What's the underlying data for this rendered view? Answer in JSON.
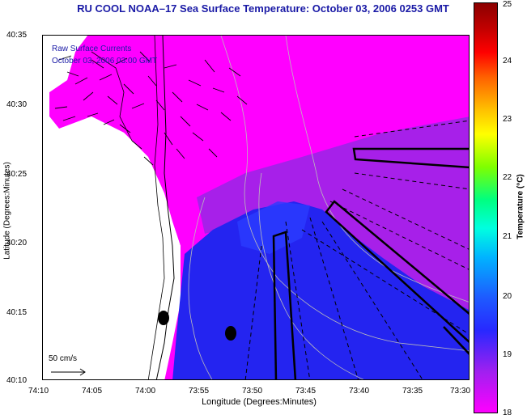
{
  "title": "RU COOL  NOAA–17  Sea Surface Temperature:  October 03, 2006 0253 GMT",
  "legend": {
    "line1": "Raw Surface Currents",
    "line2": "October 03, 2006 03:00 GMT"
  },
  "axes": {
    "xlabel": "Longitude (Degrees:Minutes)",
    "ylabel": "Latitude (Degrees:Minutes)",
    "xticks": [
      "74:10",
      "74:05",
      "74:00",
      "73:55",
      "73:50",
      "73:45",
      "73:40",
      "73:35",
      "73:30"
    ],
    "yticks": [
      "40:35",
      "40:30",
      "40:25",
      "40:20",
      "40:15",
      "40:10"
    ]
  },
  "scale": {
    "label": "50 cm/s"
  },
  "colorbar": {
    "label": "Temperature (°C)",
    "ticks": [
      "25",
      "24",
      "23",
      "22",
      "21",
      "20",
      "19",
      "18"
    ],
    "min": 18,
    "max": 25
  },
  "colors": {
    "warm": "#ff00ff",
    "mid": "#8a2be2",
    "cool": "#2424f0",
    "land": "#ffffff",
    "title": "#1a1aa6"
  }
}
